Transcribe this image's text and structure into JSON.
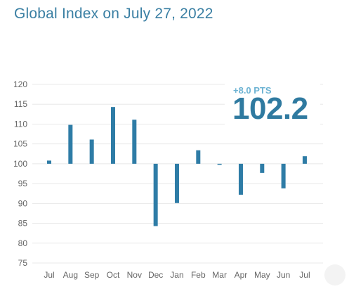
{
  "title": "Global Index on July 27, 2022",
  "badge": {
    "change": "+8.0 PTS",
    "value": "102.2"
  },
  "colors": {
    "bar": "#2e7ca6",
    "title": "#3a7fa3",
    "grid": "#e8e8e8"
  },
  "chart_data": {
    "type": "bar",
    "title": "Global Index on July 27, 2022",
    "xlabel": "",
    "ylabel": "",
    "baseline": 100,
    "ylim": [
      75,
      120
    ],
    "yticks": [
      120,
      115,
      110,
      105,
      100,
      95,
      90,
      85,
      80,
      75
    ],
    "grid": true,
    "categories": [
      "Jul",
      "Aug",
      "Sep",
      "Oct",
      "Nov",
      "Dec",
      "Jan",
      "Feb",
      "Mar",
      "Apr",
      "May",
      "Jun",
      "Jul"
    ],
    "values": [
      100.8,
      109.8,
      106.1,
      114.3,
      111.1,
      84.3,
      90.1,
      103.4,
      99.8,
      92.2,
      97.7,
      93.8,
      101.9
    ]
  }
}
